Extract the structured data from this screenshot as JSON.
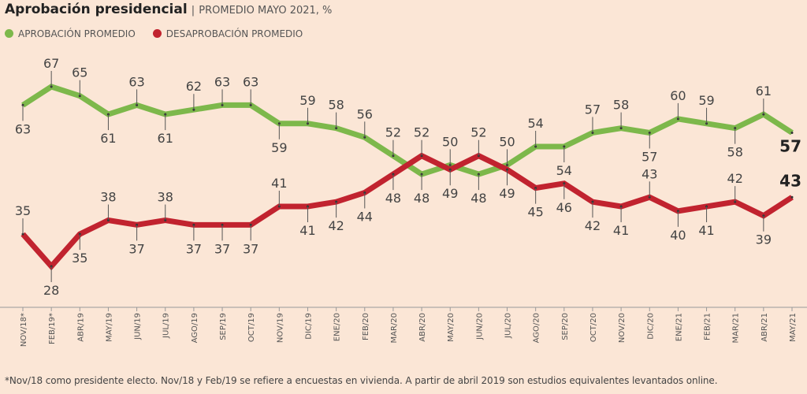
{
  "title": "Aprobación presidencial",
  "subtitle": "PROMEDIO MAYO 2021, %",
  "separator": "|",
  "footnote": "*Nov/18 como presidente electo. Nov/18 y Feb/19 se refiere a encuestas en vivienda. A partir de abril 2019 son estudios equivalentes levantados online.",
  "chart_data": {
    "type": "line",
    "title": "Aprobación presidencial",
    "subtitle": "PROMEDIO MAYO 2021, %",
    "xlabel": "",
    "ylabel": "%",
    "ylim": [
      28,
      67
    ],
    "grid": false,
    "legend_placement": "top-left",
    "categories": [
      "NOV/18*",
      "FEB/19*",
      "ABR/19",
      "MAY/19",
      "JUN/19",
      "JUL/19",
      "AGO/19",
      "SEP/19",
      "OCT/19",
      "NOV/19",
      "DIC/19",
      "ENE/20",
      "FEB/20",
      "MAR/20",
      "ABR/20",
      "MAY/20",
      "JUN/20",
      "JUL/20",
      "AGO/20",
      "SEP/20",
      "OCT/20",
      "NOV/20",
      "DIC/20",
      "ENE/21",
      "FEB/21",
      "MAR/21",
      "ABR/21",
      "MAY/21"
    ],
    "series": [
      {
        "name": "APROBACIÓN PROMEDIO",
        "color": "#7db84b",
        "values": [
          63,
          67,
          65,
          61,
          63,
          61,
          62,
          63,
          63,
          59,
          59,
          58,
          56,
          52,
          48,
          50,
          48,
          50,
          54,
          54,
          57,
          58,
          57,
          60,
          59,
          58,
          61,
          57
        ]
      },
      {
        "name": "DESAPROBACIÓN PROMEDIO",
        "color": "#c1232f",
        "values": [
          35,
          28,
          35,
          38,
          37,
          38,
          37,
          37,
          37,
          41,
          41,
          42,
          44,
          48,
          52,
          49,
          52,
          49,
          45,
          46,
          42,
          41,
          43,
          40,
          41,
          42,
          39,
          43
        ]
      }
    ]
  }
}
